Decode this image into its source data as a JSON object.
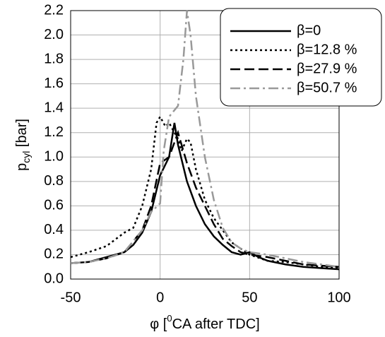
{
  "chart_data": {
    "type": "line",
    "xlabel": [
      "φ [",
      "0",
      "CA after TDC]"
    ],
    "ylabel": [
      "p",
      "cyl",
      " [bar]"
    ],
    "xlim": [
      -50,
      100
    ],
    "xticks": [
      -50,
      0,
      50,
      100
    ],
    "ylim": [
      0,
      2.2
    ],
    "yticks": [
      {
        "value": 0,
        "label": "0.0"
      },
      0.2,
      0.4,
      0.6,
      0.8,
      {
        "value": 1,
        "label": "1.0"
      },
      1.2,
      1.4,
      1.6,
      1.8,
      {
        "value": 2,
        "label": "2.0"
      },
      2.2
    ],
    "grid": true,
    "legend": "upper right",
    "series": [
      {
        "name": "β=0",
        "color": "#000000",
        "dash": "solid",
        "x": [
          -50,
          -40,
          -30,
          -20,
          -15,
          -10,
          -5,
          0,
          5,
          8,
          10,
          15,
          20,
          25,
          30,
          35,
          40,
          45,
          50,
          55,
          60,
          70,
          80,
          90,
          100
        ],
        "values": [
          0.13,
          0.14,
          0.18,
          0.22,
          0.28,
          0.38,
          0.55,
          0.85,
          1.0,
          1.28,
          1.1,
          0.8,
          0.6,
          0.45,
          0.35,
          0.28,
          0.22,
          0.2,
          0.22,
          0.18,
          0.15,
          0.12,
          0.1,
          0.09,
          0.08
        ]
      },
      {
        "name": "β=12.8 %",
        "color": "#000000",
        "dash": "dotted",
        "x": [
          -50,
          -40,
          -30,
          -20,
          -15,
          -10,
          -5,
          -2,
          0,
          3,
          5,
          8,
          10,
          12,
          15,
          17,
          20,
          25,
          30,
          35,
          40,
          45,
          50,
          60,
          70,
          80,
          90,
          100
        ],
        "values": [
          0.18,
          0.22,
          0.27,
          0.38,
          0.42,
          0.6,
          0.9,
          1.28,
          1.33,
          1.25,
          1.28,
          1.2,
          1.15,
          1.05,
          1.15,
          1.12,
          0.9,
          0.65,
          0.5,
          0.4,
          0.3,
          0.25,
          0.2,
          0.15,
          0.14,
          0.12,
          0.1,
          0.09
        ]
      },
      {
        "name": "β=27.9 %",
        "color": "#000000",
        "dash": "dashed",
        "x": [
          -50,
          -40,
          -30,
          -20,
          -10,
          -5,
          0,
          5,
          8,
          10,
          12,
          15,
          20,
          25,
          30,
          35,
          40,
          45,
          50,
          60,
          70,
          80,
          90,
          100
        ],
        "values": [
          0.13,
          0.14,
          0.17,
          0.22,
          0.4,
          0.6,
          0.95,
          1.0,
          1.12,
          1.2,
          1.1,
          0.95,
          0.75,
          0.6,
          0.45,
          0.33,
          0.27,
          0.22,
          0.2,
          0.18,
          0.15,
          0.12,
          0.11,
          0.1
        ]
      },
      {
        "name": "β=50.7 %",
        "color": "#999999",
        "dash": "dashdot",
        "x": [
          -50,
          -40,
          -30,
          -20,
          -10,
          -5,
          0,
          2,
          5,
          10,
          13,
          15,
          17,
          20,
          25,
          30,
          35,
          40,
          45,
          50,
          60,
          70,
          80,
          90,
          100
        ],
        "values": [
          0.13,
          0.14,
          0.17,
          0.22,
          0.4,
          0.55,
          0.62,
          1.05,
          1.33,
          1.42,
          1.8,
          2.2,
          2.0,
          1.5,
          1.0,
          0.65,
          0.42,
          0.3,
          0.25,
          0.22,
          0.2,
          0.17,
          0.14,
          0.12,
          0.1
        ]
      }
    ]
  }
}
